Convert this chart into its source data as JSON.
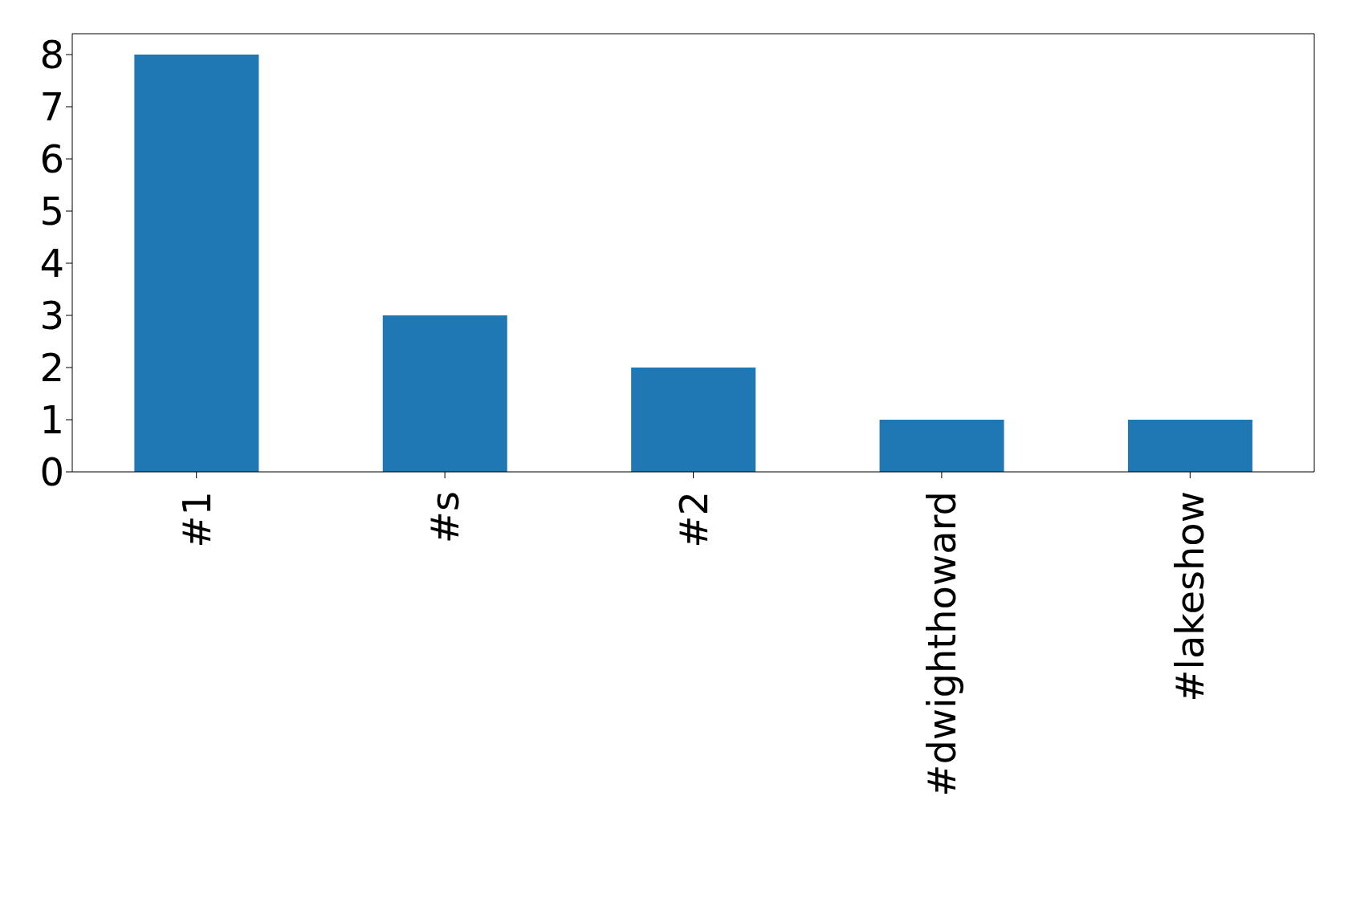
{
  "chart_data": {
    "type": "bar",
    "categories": [
      "#1",
      "#s",
      "#2",
      "#dwighthoward",
      "#lakeshow"
    ],
    "values": [
      8,
      3,
      2,
      1,
      1
    ],
    "color": "#1f77b4",
    "ylim": [
      0,
      8.4
    ],
    "yticks": [
      0,
      1,
      2,
      3,
      4,
      5,
      6,
      7,
      8
    ],
    "grid": false,
    "legend": false
  }
}
